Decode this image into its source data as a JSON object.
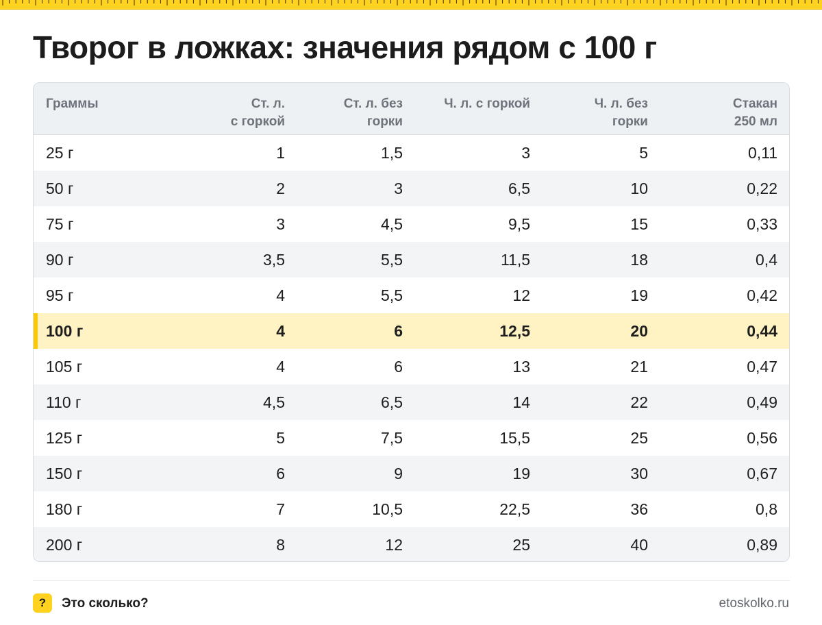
{
  "title": "Творог в ложках: значения рядом с 100 г",
  "table": {
    "headers": [
      "Граммы",
      "Ст. л.\nс горкой",
      "Ст. л. без\nгорки",
      "Ч. л. с горкой",
      "Ч. л. без\nгорки",
      "Стакан\n250 мл"
    ],
    "rows": [
      [
        "25 г",
        "1",
        "1,5",
        "3",
        "5",
        "0,11"
      ],
      [
        "50 г",
        "2",
        "3",
        "6,5",
        "10",
        "0,22"
      ],
      [
        "75 г",
        "3",
        "4,5",
        "9,5",
        "15",
        "0,33"
      ],
      [
        "90 г",
        "3,5",
        "5,5",
        "11,5",
        "18",
        "0,4"
      ],
      [
        "95 г",
        "4",
        "5,5",
        "12",
        "19",
        "0,42"
      ],
      [
        "100 г",
        "4",
        "6",
        "12,5",
        "20",
        "0,44"
      ],
      [
        "105 г",
        "4",
        "6",
        "13",
        "21",
        "0,47"
      ],
      [
        "110 г",
        "4,5",
        "6,5",
        "14",
        "22",
        "0,49"
      ],
      [
        "125 г",
        "5",
        "7,5",
        "15,5",
        "25",
        "0,56"
      ],
      [
        "150 г",
        "6",
        "9",
        "19",
        "30",
        "0,67"
      ],
      [
        "180 г",
        "7",
        "10,5",
        "22,5",
        "36",
        "0,8"
      ],
      [
        "200 г",
        "8",
        "12",
        "25",
        "40",
        "0,89"
      ]
    ],
    "highlight_row": 5
  },
  "footer": {
    "badge": "?",
    "brand": "Это сколько?",
    "site": "etoskolko.ru"
  },
  "colors": {
    "accent": "#ffd21f",
    "highlight": "#fff3c4",
    "header_bg": "#eef1f4",
    "alt_row": "#f2f4f6"
  }
}
